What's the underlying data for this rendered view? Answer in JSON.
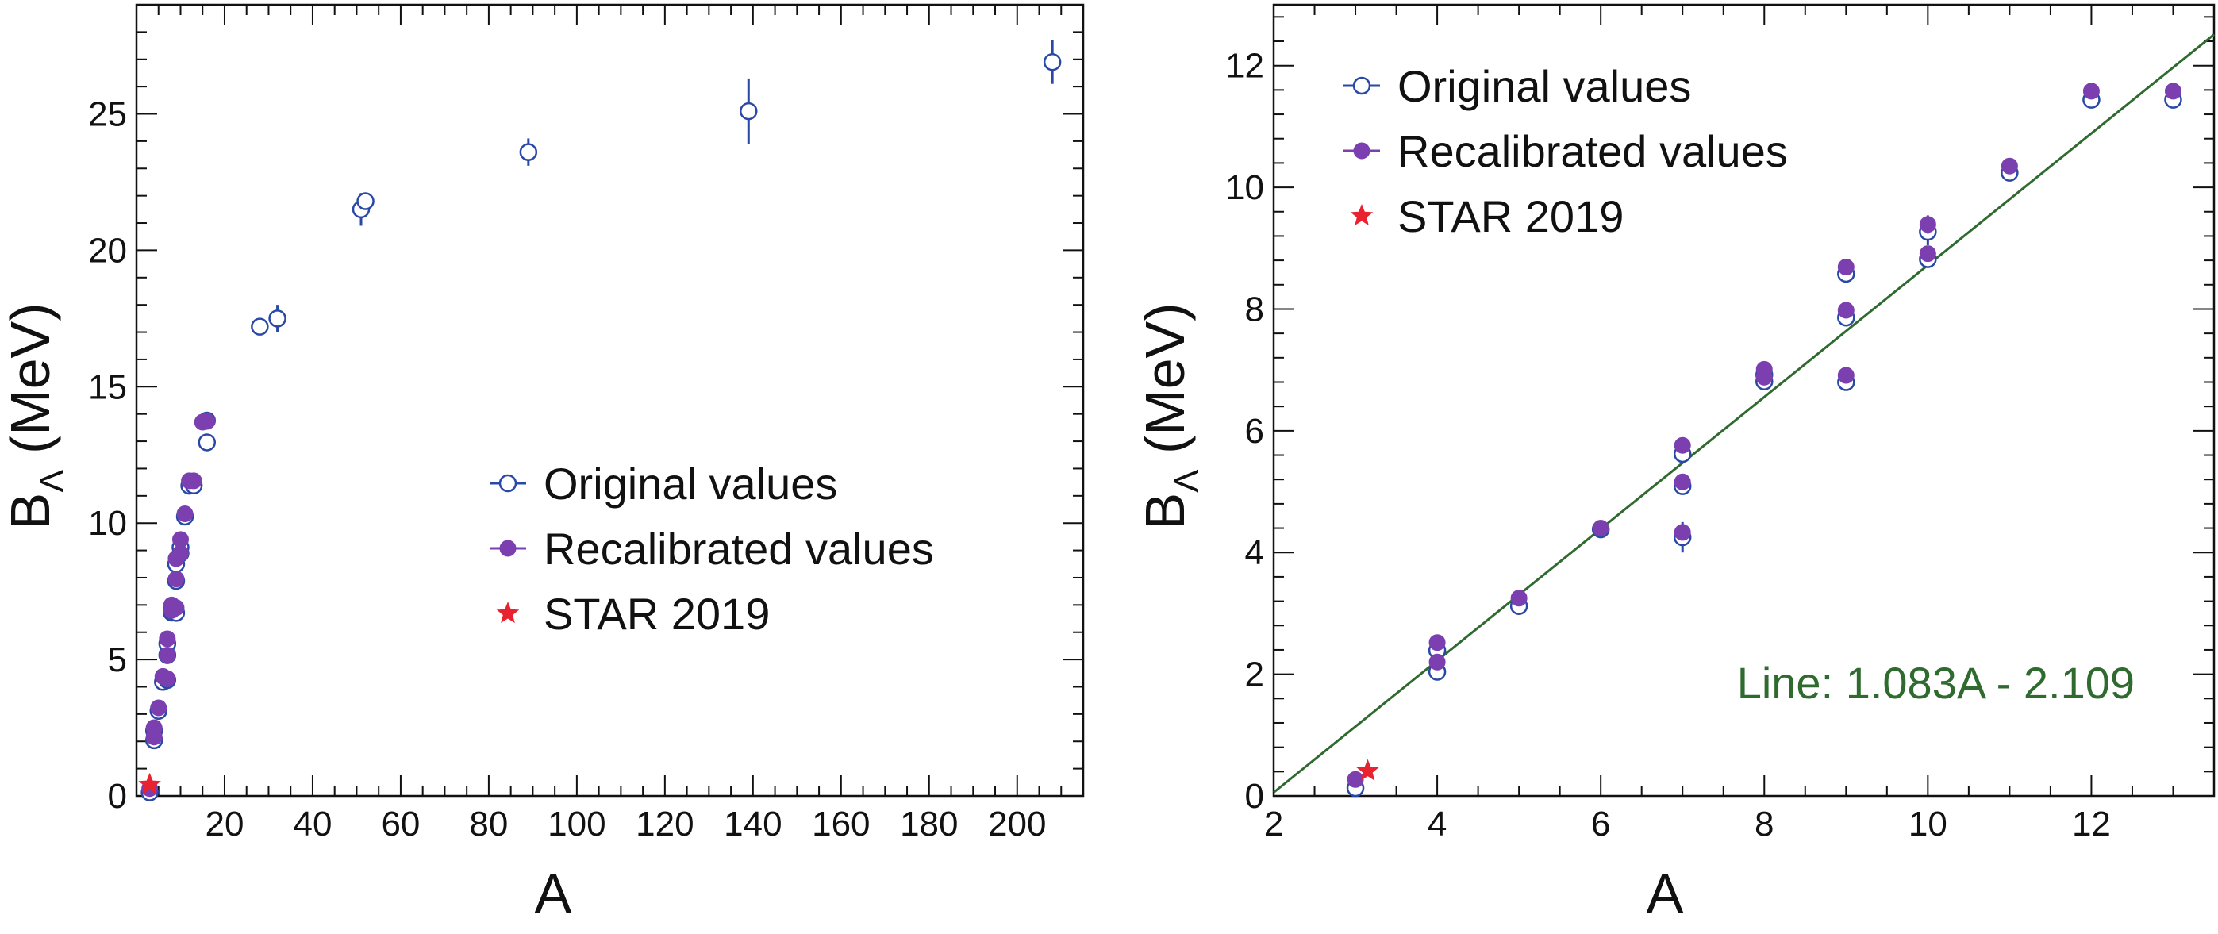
{
  "chart_data": [
    {
      "type": "scatter",
      "panel": "left",
      "xlabel": "A",
      "ylabel": "B",
      "ylabel_sub": "Λ",
      "ylabel_unit": " (MeV)",
      "xlim": [
        0,
        215
      ],
      "ylim": [
        0,
        29
      ],
      "xticks": [
        20,
        40,
        60,
        80,
        100,
        120,
        140,
        160,
        180,
        200
      ],
      "xtick_labels": [
        "20",
        "40",
        "60",
        "80",
        "100",
        "120",
        "140",
        "160",
        "180",
        "200"
      ],
      "xminor": 5,
      "yticks": [
        0,
        5,
        10,
        15,
        20,
        25
      ],
      "ytick_labels": [
        "0",
        "5",
        "10",
        "15",
        "20",
        "25"
      ],
      "yminor": 1,
      "legend": {
        "placement": "center-right",
        "entries": [
          {
            "label": "Original values",
            "marker": "open-circle"
          },
          {
            "label": "Recalibrated values",
            "marker": "filled-circle"
          },
          {
            "label": "STAR 2019",
            "marker": "star"
          }
        ]
      },
      "series": [
        {
          "name": "Original values",
          "marker": "open-circle",
          "points": [
            {
              "x": 3,
              "y": 0.13,
              "err": 0.05
            },
            {
              "x": 4,
              "y": 2.04,
              "err": 0.04
            },
            {
              "x": 4,
              "y": 2.39,
              "err": 0.03
            },
            {
              "x": 5,
              "y": 3.12,
              "err": 0.02
            },
            {
              "x": 6,
              "y": 4.18,
              "err": 0.1
            },
            {
              "x": 7,
              "y": 4.25,
              "err": 0.25
            },
            {
              "x": 7,
              "y": 5.16,
              "err": 0.08
            },
            {
              "x": 7,
              "y": 5.58,
              "err": 0.03
            },
            {
              "x": 8,
              "y": 6.72,
              "err": 0.04
            },
            {
              "x": 8,
              "y": 6.8,
              "err": 0.03
            },
            {
              "x": 9,
              "y": 6.71,
              "err": 0.04
            },
            {
              "x": 9,
              "y": 7.88,
              "err": 0.05
            },
            {
              "x": 9,
              "y": 8.5,
              "err": 0.11
            },
            {
              "x": 10,
              "y": 8.89,
              "err": 0.1
            },
            {
              "x": 10,
              "y": 9.11,
              "err": 0.22
            },
            {
              "x": 11,
              "y": 10.24,
              "err": 0.05
            },
            {
              "x": 12,
              "y": 11.37,
              "err": 0.06
            },
            {
              "x": 13,
              "y": 11.38,
              "err": 0.05
            },
            {
              "x": 16,
              "y": 12.96,
              "err": 0.1
            },
            {
              "x": 16,
              "y": 13.76,
              "err": 0.16
            },
            {
              "x": 28,
              "y": 17.2,
              "err": 0.2
            },
            {
              "x": 32,
              "y": 17.5,
              "err": 0.5
            },
            {
              "x": 51,
              "y": 21.5,
              "err": 0.6
            },
            {
              "x": 52,
              "y": 21.8,
              "err": 0.3
            },
            {
              "x": 89,
              "y": 23.6,
              "err": 0.5
            },
            {
              "x": 139,
              "y": 25.1,
              "err": 1.2
            },
            {
              "x": 208,
              "y": 26.9,
              "err": 0.8
            }
          ]
        },
        {
          "name": "Recalibrated values",
          "marker": "filled-circle",
          "points": [
            {
              "x": 3,
              "y": 0.27,
              "err": 0.03
            },
            {
              "x": 4,
              "y": 2.16,
              "err": 0.04
            },
            {
              "x": 4,
              "y": 2.5,
              "err": 0.03
            },
            {
              "x": 5,
              "y": 3.23,
              "err": 0.02
            },
            {
              "x": 6,
              "y": 4.38,
              "err": 0.08
            },
            {
              "x": 7,
              "y": 4.3,
              "err": 0.1
            },
            {
              "x": 7,
              "y": 5.16,
              "err": 0.08
            },
            {
              "x": 7,
              "y": 5.76,
              "err": 0.03
            },
            {
              "x": 8,
              "y": 6.8,
              "err": 0.04
            },
            {
              "x": 8,
              "y": 7.0,
              "err": 0.03
            },
            {
              "x": 9,
              "y": 6.9,
              "err": 0.04
            },
            {
              "x": 9,
              "y": 7.95,
              "err": 0.05
            },
            {
              "x": 9,
              "y": 8.7,
              "err": 0.08
            },
            {
              "x": 10,
              "y": 8.9,
              "err": 0.1
            },
            {
              "x": 10,
              "y": 9.4,
              "err": 0.15
            },
            {
              "x": 11,
              "y": 10.34,
              "err": 0.05
            },
            {
              "x": 12,
              "y": 11.55,
              "err": 0.06
            },
            {
              "x": 13,
              "y": 11.55,
              "err": 0.05
            },
            {
              "x": 15,
              "y": 13.7,
              "err": 0.1
            },
            {
              "x": 16,
              "y": 13.73,
              "err": 0.1
            }
          ]
        },
        {
          "name": "STAR 2019",
          "marker": "star",
          "points": [
            {
              "x": 3,
              "y": 0.41
            }
          ]
        }
      ]
    },
    {
      "type": "scatter",
      "panel": "right",
      "xlabel": "A",
      "ylabel": "B",
      "ylabel_sub": "Λ",
      "ylabel_unit": " (MeV)",
      "xlim": [
        2,
        13.5
      ],
      "ylim": [
        0,
        13
      ],
      "xticks": [
        2,
        4,
        6,
        8,
        10,
        12
      ],
      "xtick_labels": [
        "2",
        "4",
        "6",
        "8",
        "10",
        "12"
      ],
      "xminor": 0.5,
      "yticks": [
        0,
        2,
        4,
        6,
        8,
        10,
        12
      ],
      "ytick_labels": [
        "0",
        "2",
        "4",
        "6",
        "8",
        "10",
        "12"
      ],
      "yminor": 0.4,
      "legend": {
        "placement": "top-left",
        "entries": [
          {
            "label": "Original values",
            "marker": "open-circle"
          },
          {
            "label": "Recalibrated values",
            "marker": "filled-circle"
          },
          {
            "label": "STAR 2019",
            "marker": "star"
          }
        ]
      },
      "fit_line": {
        "slope": 1.083,
        "intercept": -2.109,
        "x_range": [
          2,
          13.5
        ],
        "label": "Line: 1.083A - 2.109"
      },
      "series": [
        {
          "name": "Original values",
          "marker": "open-circle",
          "points": [
            {
              "x": 3,
              "y": 0.13,
              "err": 0.05
            },
            {
              "x": 4,
              "y": 2.04,
              "err": 0.04
            },
            {
              "x": 4,
              "y": 2.39,
              "err": 0.03
            },
            {
              "x": 5,
              "y": 3.12,
              "err": 0.02
            },
            {
              "x": 6,
              "y": 4.38,
              "err": 0.05
            },
            {
              "x": 7,
              "y": 4.25,
              "err": 0.25
            },
            {
              "x": 7,
              "y": 5.09,
              "err": 0.08
            },
            {
              "x": 7,
              "y": 5.62,
              "err": 0.03
            },
            {
              "x": 8,
              "y": 6.81,
              "err": 0.04
            },
            {
              "x": 8,
              "y": 6.92,
              "err": 0.03
            },
            {
              "x": 9,
              "y": 6.8,
              "err": 0.04
            },
            {
              "x": 9,
              "y": 7.86,
              "err": 0.05
            },
            {
              "x": 9,
              "y": 8.58,
              "err": 0.11
            },
            {
              "x": 10,
              "y": 8.82,
              "err": 0.1
            },
            {
              "x": 10,
              "y": 9.27,
              "err": 0.22
            },
            {
              "x": 11,
              "y": 10.24,
              "err": 0.05
            },
            {
              "x": 12,
              "y": 11.44,
              "err": 0.06
            },
            {
              "x": 13,
              "y": 11.44,
              "err": 0.05
            }
          ]
        },
        {
          "name": "Recalibrated values",
          "marker": "filled-circle",
          "points": [
            {
              "x": 3,
              "y": 0.27,
              "err": 0.03
            },
            {
              "x": 4,
              "y": 2.2,
              "err": 0.04
            },
            {
              "x": 4,
              "y": 2.52,
              "err": 0.03
            },
            {
              "x": 5,
              "y": 3.25,
              "err": 0.02
            },
            {
              "x": 6,
              "y": 4.4,
              "err": 0.05
            },
            {
              "x": 7,
              "y": 4.33,
              "err": 0.1
            },
            {
              "x": 7,
              "y": 5.16,
              "err": 0.08
            },
            {
              "x": 7,
              "y": 5.76,
              "err": 0.03
            },
            {
              "x": 8,
              "y": 6.88,
              "err": 0.04
            },
            {
              "x": 8,
              "y": 7.01,
              "err": 0.03
            },
            {
              "x": 9,
              "y": 6.91,
              "err": 0.04
            },
            {
              "x": 9,
              "y": 7.98,
              "err": 0.05
            },
            {
              "x": 9,
              "y": 8.69,
              "err": 0.08
            },
            {
              "x": 10,
              "y": 8.91,
              "err": 0.1
            },
            {
              "x": 10,
              "y": 9.39,
              "err": 0.15
            },
            {
              "x": 11,
              "y": 10.35,
              "err": 0.05
            },
            {
              "x": 12,
              "y": 11.58,
              "err": 0.06
            },
            {
              "x": 13,
              "y": 11.58,
              "err": 0.05
            }
          ]
        },
        {
          "name": "STAR 2019",
          "marker": "star",
          "points": [
            {
              "x": 3.15,
              "y": 0.41
            }
          ]
        }
      ]
    }
  ],
  "colors": {
    "original": "#2a48a5",
    "recalibrated": "#7b3fb0",
    "star": "#e8232f",
    "fit_line": "#2f6a2f",
    "axis": "#111111"
  }
}
